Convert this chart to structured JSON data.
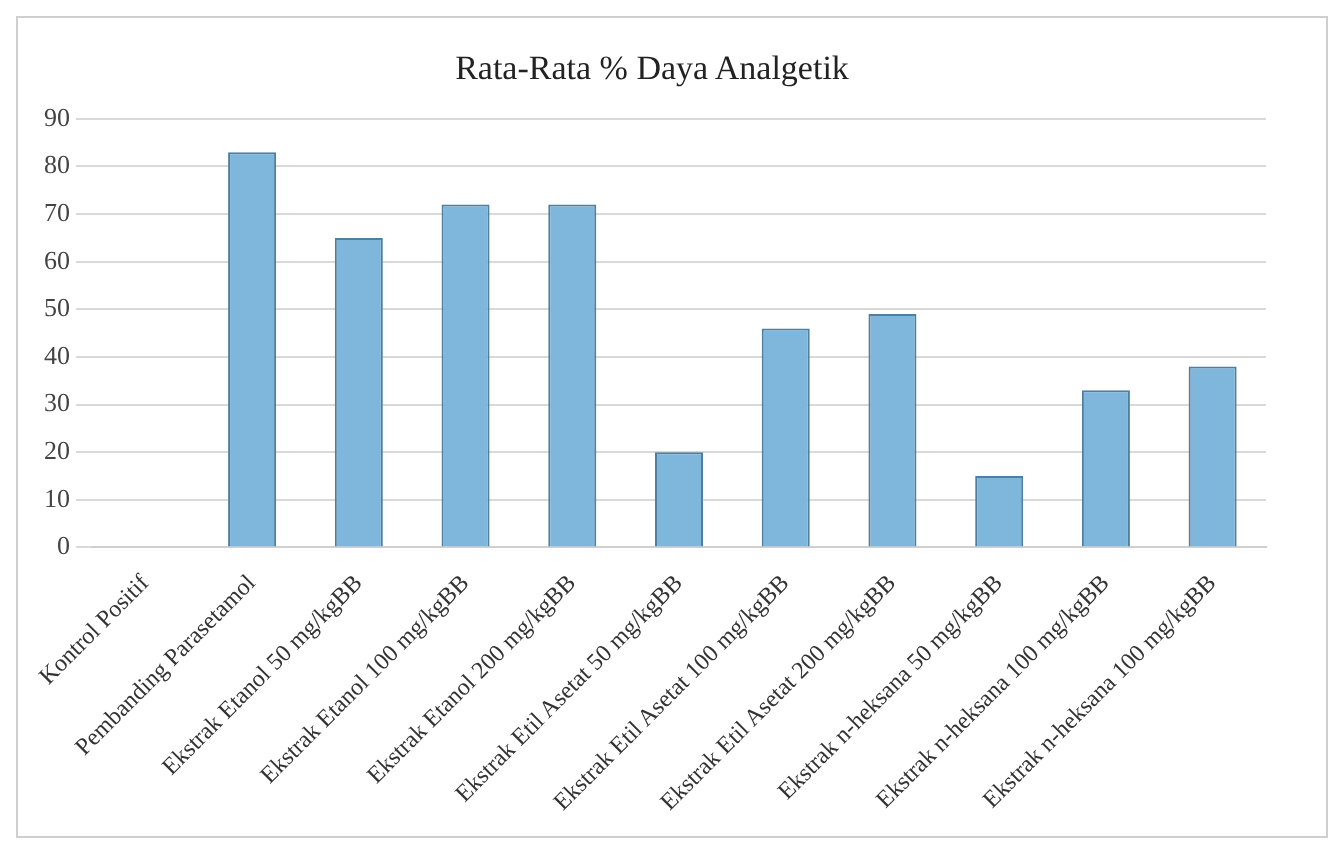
{
  "chart_data": {
    "type": "bar",
    "title": "Rata-Rata % Daya Analgetik",
    "categories": [
      "Kontrol Positif",
      "Pembanding Parasetamol",
      "Ekstrak Etanol 50 mg/kgBB",
      "Ekstrak Etanol 100 mg/kgBB",
      "Ekstrak Etanol 200 mg/kgBB",
      "Ekstrak Etil Asetat 50 mg/kgBB",
      "Ekstrak Etil Asetat 100 mg/kgBB",
      "Ekstrak Etil Asetat 200 mg/kgBB",
      "Ekstrak n-heksana 50 mg/kgBB",
      "Ekstrak n-heksana 100 mg/kgBB",
      "Ekstrak n-heksana 100 mg/kgBB"
    ],
    "values": [
      0,
      83,
      65,
      72,
      72,
      20,
      46,
      49,
      15,
      33,
      38
    ],
    "color": "#7fb6dc",
    "ylim": [
      0,
      90
    ],
    "yticks": [
      0,
      10,
      20,
      30,
      40,
      50,
      60,
      70,
      80,
      90
    ],
    "grid": "y"
  }
}
